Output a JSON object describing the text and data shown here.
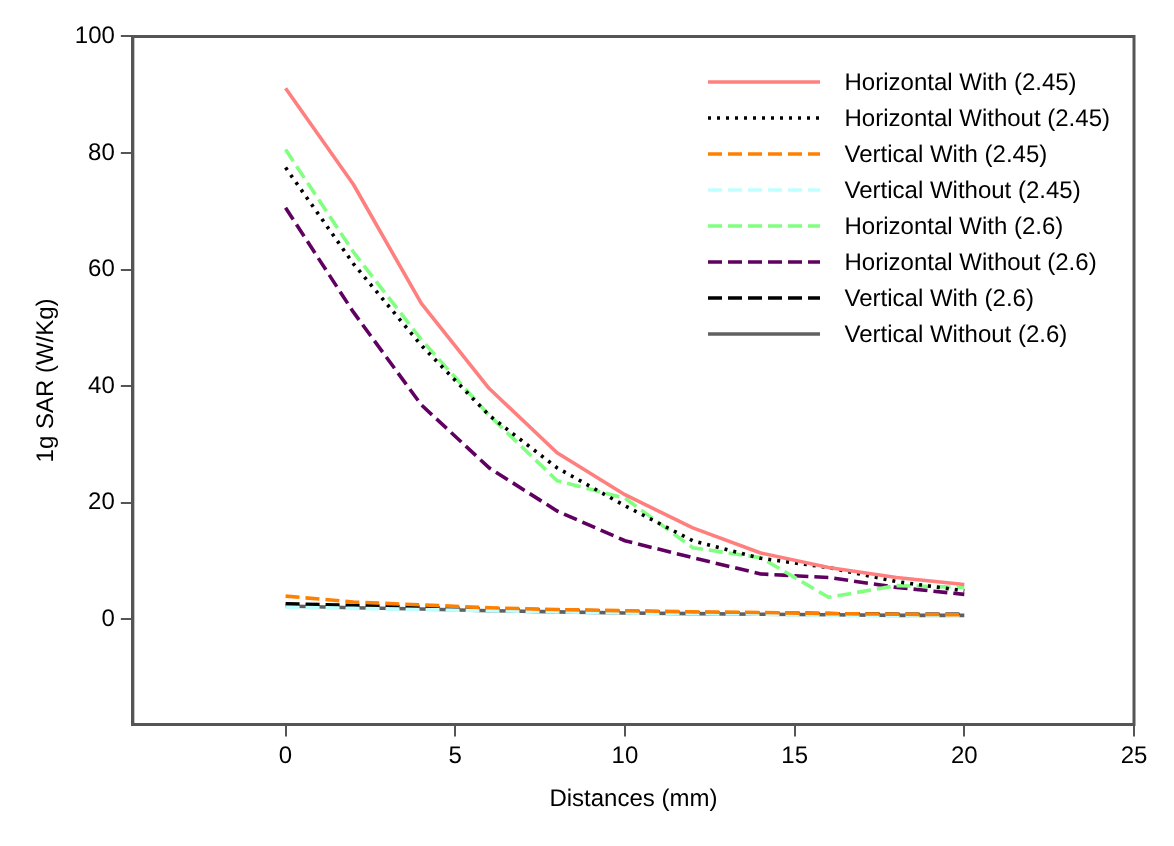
{
  "chart_data": {
    "type": "line",
    "xlabel": "Distances (mm)",
    "ylabel": "1g SAR (W/Kg)",
    "x": [
      0,
      2,
      4,
      6,
      8,
      10,
      12,
      14,
      16,
      18,
      20
    ],
    "xlim": [
      -4.5,
      25
    ],
    "xticks": [
      0,
      5,
      10,
      15,
      20,
      25
    ],
    "ylim": [
      -18,
      100
    ],
    "yticks": [
      0,
      20,
      40,
      60,
      80,
      100
    ],
    "grid": false,
    "legend": "top right",
    "marker": "none",
    "series": [
      {
        "name": "Horizontal With (2.45)",
        "color": "#ff7f7f",
        "line_style": "solid",
        "values": [
          91.1,
          74.6,
          54.2,
          39.6,
          28.6,
          21.4,
          15.7,
          11.4,
          8.9,
          7.2,
          6.0
        ]
      },
      {
        "name": "Horizontal Without (2.45)",
        "color": "#000000",
        "line_style": "dotted",
        "values": [
          77.5,
          61,
          47,
          35,
          26,
          19.5,
          13.5,
          10.5,
          8.9,
          6.5,
          4.9
        ]
      },
      {
        "name": "Vertical With (2.45)",
        "color": "#ff8000",
        "line_style": "dashed",
        "values": [
          4.0,
          3.0,
          2.5,
          2.0,
          1.7,
          1.5,
          1.3,
          1.2,
          1.0,
          0.9,
          0.8
        ]
      },
      {
        "name": "Vertical Without (2.45)",
        "color": "#c0ffff",
        "line_style": "dashed",
        "values": [
          2.1,
          1.9,
          1.7,
          1.5,
          1.3,
          1.1,
          1.0,
          0.9,
          0.7,
          0.6,
          0.5
        ]
      },
      {
        "name": "Horizontal With (2.6)",
        "color": "#80ff80",
        "line_style": "dashed",
        "values": [
          80.6,
          63,
          48,
          35,
          23.8,
          20.8,
          12.3,
          10.6,
          3.8,
          5.8,
          5.5
        ]
      },
      {
        "name": "Horizontal Without (2.6)",
        "color": "#600060",
        "line_style": "dashed",
        "values": [
          70.6,
          52.7,
          36.8,
          26,
          18.6,
          13.5,
          10.6,
          7.8,
          7.2,
          5.5,
          4.3
        ]
      },
      {
        "name": "Vertical With (2.6)",
        "color": "#000000",
        "line_style": "dashed",
        "values": [
          2.7,
          2.4,
          2.1,
          1.8,
          1.6,
          1.4,
          1.2,
          1.1,
          1.0,
          0.9,
          0.9
        ]
      },
      {
        "name": "Vertical Without (2.6)",
        "color": "#606060",
        "line_style": "solid",
        "values": [
          2.3,
          2.0,
          1.8,
          1.5,
          1.3,
          1.1,
          1.0,
          0.9,
          0.8,
          0.7,
          0.7
        ]
      }
    ]
  }
}
